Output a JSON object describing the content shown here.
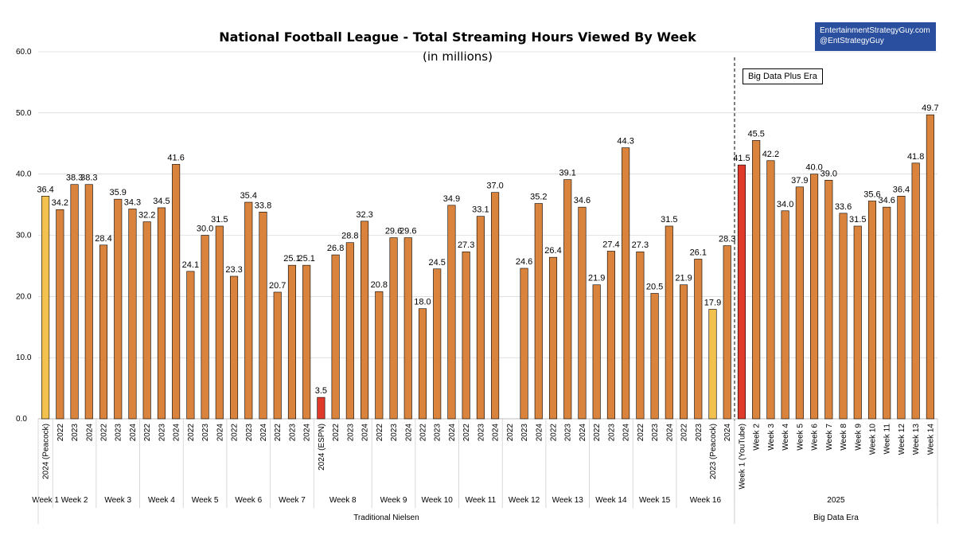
{
  "credit": {
    "line1": "EntertainmentStrategyGuy.com",
    "line2": "@EntStrategyGuy"
  },
  "era_note": "Big Data Plus Era",
  "colors": {
    "normal": "#d9833d",
    "peacock": "#f2c14e",
    "special": "#e03a2a",
    "grid": "#cccccc",
    "text": "#000000"
  },
  "chart_data": {
    "type": "bar",
    "title": "National Football League - Total Streaming Hours Viewed By Week",
    "subtitle": "(in millions)",
    "ylim": [
      0,
      60
    ],
    "yticks": [
      "0.0",
      "10.0",
      "20.0",
      "30.0",
      "40.0",
      "50.0",
      "60.0"
    ],
    "sections": [
      {
        "label": "Traditional Nielsen",
        "groups": [
          {
            "label": "Week 1",
            "bars": [
              {
                "cat": "2024 (Peacock)",
                "value": 36.4,
                "style": "peacock"
              }
            ]
          },
          {
            "label": "Week 2",
            "bars": [
              {
                "cat": "2022",
                "value": 34.2
              },
              {
                "cat": "2023",
                "value": 38.3
              },
              {
                "cat": "2024",
                "value": 38.3
              }
            ]
          },
          {
            "label": "Week 3",
            "bars": [
              {
                "cat": "2022",
                "value": 28.4
              },
              {
                "cat": "2023",
                "value": 35.9
              },
              {
                "cat": "2024",
                "value": 34.3
              }
            ]
          },
          {
            "label": "Week 4",
            "bars": [
              {
                "cat": "2022",
                "value": 32.2
              },
              {
                "cat": "2023",
                "value": 34.5
              },
              {
                "cat": "2024",
                "value": 41.6
              }
            ]
          },
          {
            "label": "Week 5",
            "bars": [
              {
                "cat": "2022",
                "value": 24.1
              },
              {
                "cat": "2023",
                "value": 30.0
              },
              {
                "cat": "2024",
                "value": 31.5
              }
            ]
          },
          {
            "label": "Week 6",
            "bars": [
              {
                "cat": "2022",
                "value": 23.3
              },
              {
                "cat": "2023",
                "value": 35.4
              },
              {
                "cat": "2024",
                "value": 33.8
              }
            ]
          },
          {
            "label": "Week 7",
            "bars": [
              {
                "cat": "2022",
                "value": 20.7
              },
              {
                "cat": "2023",
                "value": 25.1
              },
              {
                "cat": "2024",
                "value": 25.1
              }
            ]
          },
          {
            "label": "Week 8",
            "bars": [
              {
                "cat": "2024 (ESPN)",
                "value": 3.5,
                "style": "special"
              },
              {
                "cat": "2022",
                "value": 26.8
              },
              {
                "cat": "2023",
                "value": 28.8
              },
              {
                "cat": "2024",
                "value": 32.3
              }
            ]
          },
          {
            "label": "Week 9",
            "bars": [
              {
                "cat": "2022",
                "value": 20.8
              },
              {
                "cat": "2023",
                "value": 29.6
              },
              {
                "cat": "2024",
                "value": 29.6
              }
            ]
          },
          {
            "label": "Week 10",
            "bars": [
              {
                "cat": "2022",
                "value": 18.0
              },
              {
                "cat": "2023",
                "value": 24.5
              },
              {
                "cat": "2024",
                "value": 34.9
              }
            ]
          },
          {
            "label": "Week 11",
            "bars": [
              {
                "cat": "2022",
                "value": 27.3
              },
              {
                "cat": "2023",
                "value": 33.1
              },
              {
                "cat": "2024",
                "value": 37.0
              }
            ]
          },
          {
            "label": "Week 12",
            "bars": [
              {
                "cat": "2022",
                "value": null
              },
              {
                "cat": "2023",
                "value": 24.6
              },
              {
                "cat": "2024",
                "value": 35.2
              }
            ]
          },
          {
            "label": "Week 13",
            "bars": [
              {
                "cat": "2022",
                "value": 26.4
              },
              {
                "cat": "2023",
                "value": 39.1
              },
              {
                "cat": "2024",
                "value": 34.6
              }
            ]
          },
          {
            "label": "Week 14",
            "bars": [
              {
                "cat": "2022",
                "value": 21.9
              },
              {
                "cat": "2023",
                "value": 27.4
              },
              {
                "cat": "2024",
                "value": 44.3
              }
            ]
          },
          {
            "label": "Week 15",
            "bars": [
              {
                "cat": "2022",
                "value": 27.3
              },
              {
                "cat": "2023",
                "value": 20.5
              },
              {
                "cat": "2024",
                "value": 31.5
              }
            ]
          },
          {
            "label": "Week 16",
            "bars": [
              {
                "cat": "2022",
                "value": 21.9
              },
              {
                "cat": "2023",
                "value": 26.1
              },
              {
                "cat": "2023 (Peacock)",
                "value": 17.9,
                "style": "peacock"
              },
              {
                "cat": "2024",
                "value": 28.3
              }
            ]
          }
        ]
      },
      {
        "label": "Big Data Era",
        "groups": [
          {
            "label": "2025",
            "bars": [
              {
                "cat": "Week 1 (YouTube)",
                "value": 41.5,
                "style": "special"
              },
              {
                "cat": "Week 2",
                "value": 45.5
              },
              {
                "cat": "Week 3",
                "value": 42.2
              },
              {
                "cat": "Week 4",
                "value": 34.0
              },
              {
                "cat": "Week 5",
                "value": 37.9
              },
              {
                "cat": "Week 6",
                "value": 40.0
              },
              {
                "cat": "Week 7",
                "value": 39.0
              },
              {
                "cat": "Week 8",
                "value": 33.6
              },
              {
                "cat": "Week 9",
                "value": 31.5
              },
              {
                "cat": "Week 10",
                "value": 35.6
              },
              {
                "cat": "Week 11",
                "value": 34.6
              },
              {
                "cat": "Week 12",
                "value": 36.4
              },
              {
                "cat": "Week 13",
                "value": 41.8
              },
              {
                "cat": "Week 14",
                "value": 49.7
              }
            ]
          }
        ]
      }
    ]
  }
}
